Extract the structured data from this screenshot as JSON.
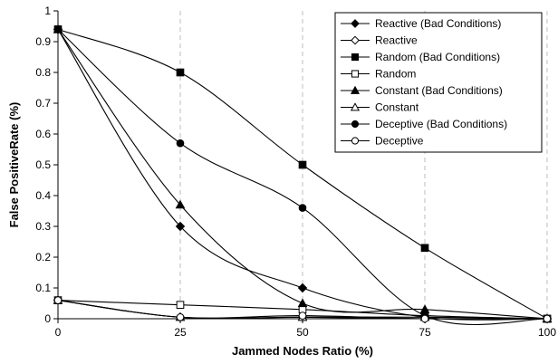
{
  "chart_data": {
    "type": "line",
    "title": "",
    "xlabel": "Jammed Nodes Ratio (%)",
    "ylabel": "False PositiveRate (%)",
    "x": [
      0,
      25,
      50,
      75,
      100
    ],
    "xlim": [
      0,
      100
    ],
    "ylim": [
      0,
      1
    ],
    "xticks": [
      "0",
      "25",
      "50",
      "75",
      "100"
    ],
    "yticks": [
      "0",
      "0.1",
      "0.2",
      "0.3",
      "0.4",
      "0.5",
      "0.6",
      "0.7",
      "0.8",
      "0.9",
      "1"
    ],
    "grid": true,
    "legend_position": "top-right",
    "series": [
      {
        "name": "Reactive (Bad Conditions)",
        "marker": "diamond",
        "filled": true,
        "values": [
          0.94,
          0.3,
          0.1,
          0.005,
          0.0
        ]
      },
      {
        "name": "Reactive",
        "marker": "diamond",
        "filled": false,
        "values": [
          0.06,
          0.005,
          0.005,
          0.0,
          0.0
        ]
      },
      {
        "name": "Random (Bad Conditions)",
        "marker": "square",
        "filled": true,
        "values": [
          0.94,
          0.8,
          0.5,
          0.23,
          0.0
        ]
      },
      {
        "name": "Random",
        "marker": "square",
        "filled": false,
        "values": [
          0.06,
          0.045,
          0.03,
          0.01,
          0.0
        ]
      },
      {
        "name": "Constant (Bad Conditions)",
        "marker": "triangle",
        "filled": true,
        "values": [
          0.94,
          0.37,
          0.05,
          0.03,
          0.0
        ]
      },
      {
        "name": "Constant",
        "marker": "triangle",
        "filled": false,
        "values": [
          0.06,
          0.005,
          0.005,
          0.005,
          0.0
        ]
      },
      {
        "name": "Deceptive (Bad Conditions)",
        "marker": "circle",
        "filled": true,
        "values": [
          0.94,
          0.57,
          0.36,
          0.01,
          0.0
        ]
      },
      {
        "name": "Deceptive",
        "marker": "circle",
        "filled": false,
        "values": [
          0.06,
          0.005,
          0.01,
          0.0,
          0.0
        ]
      }
    ]
  }
}
